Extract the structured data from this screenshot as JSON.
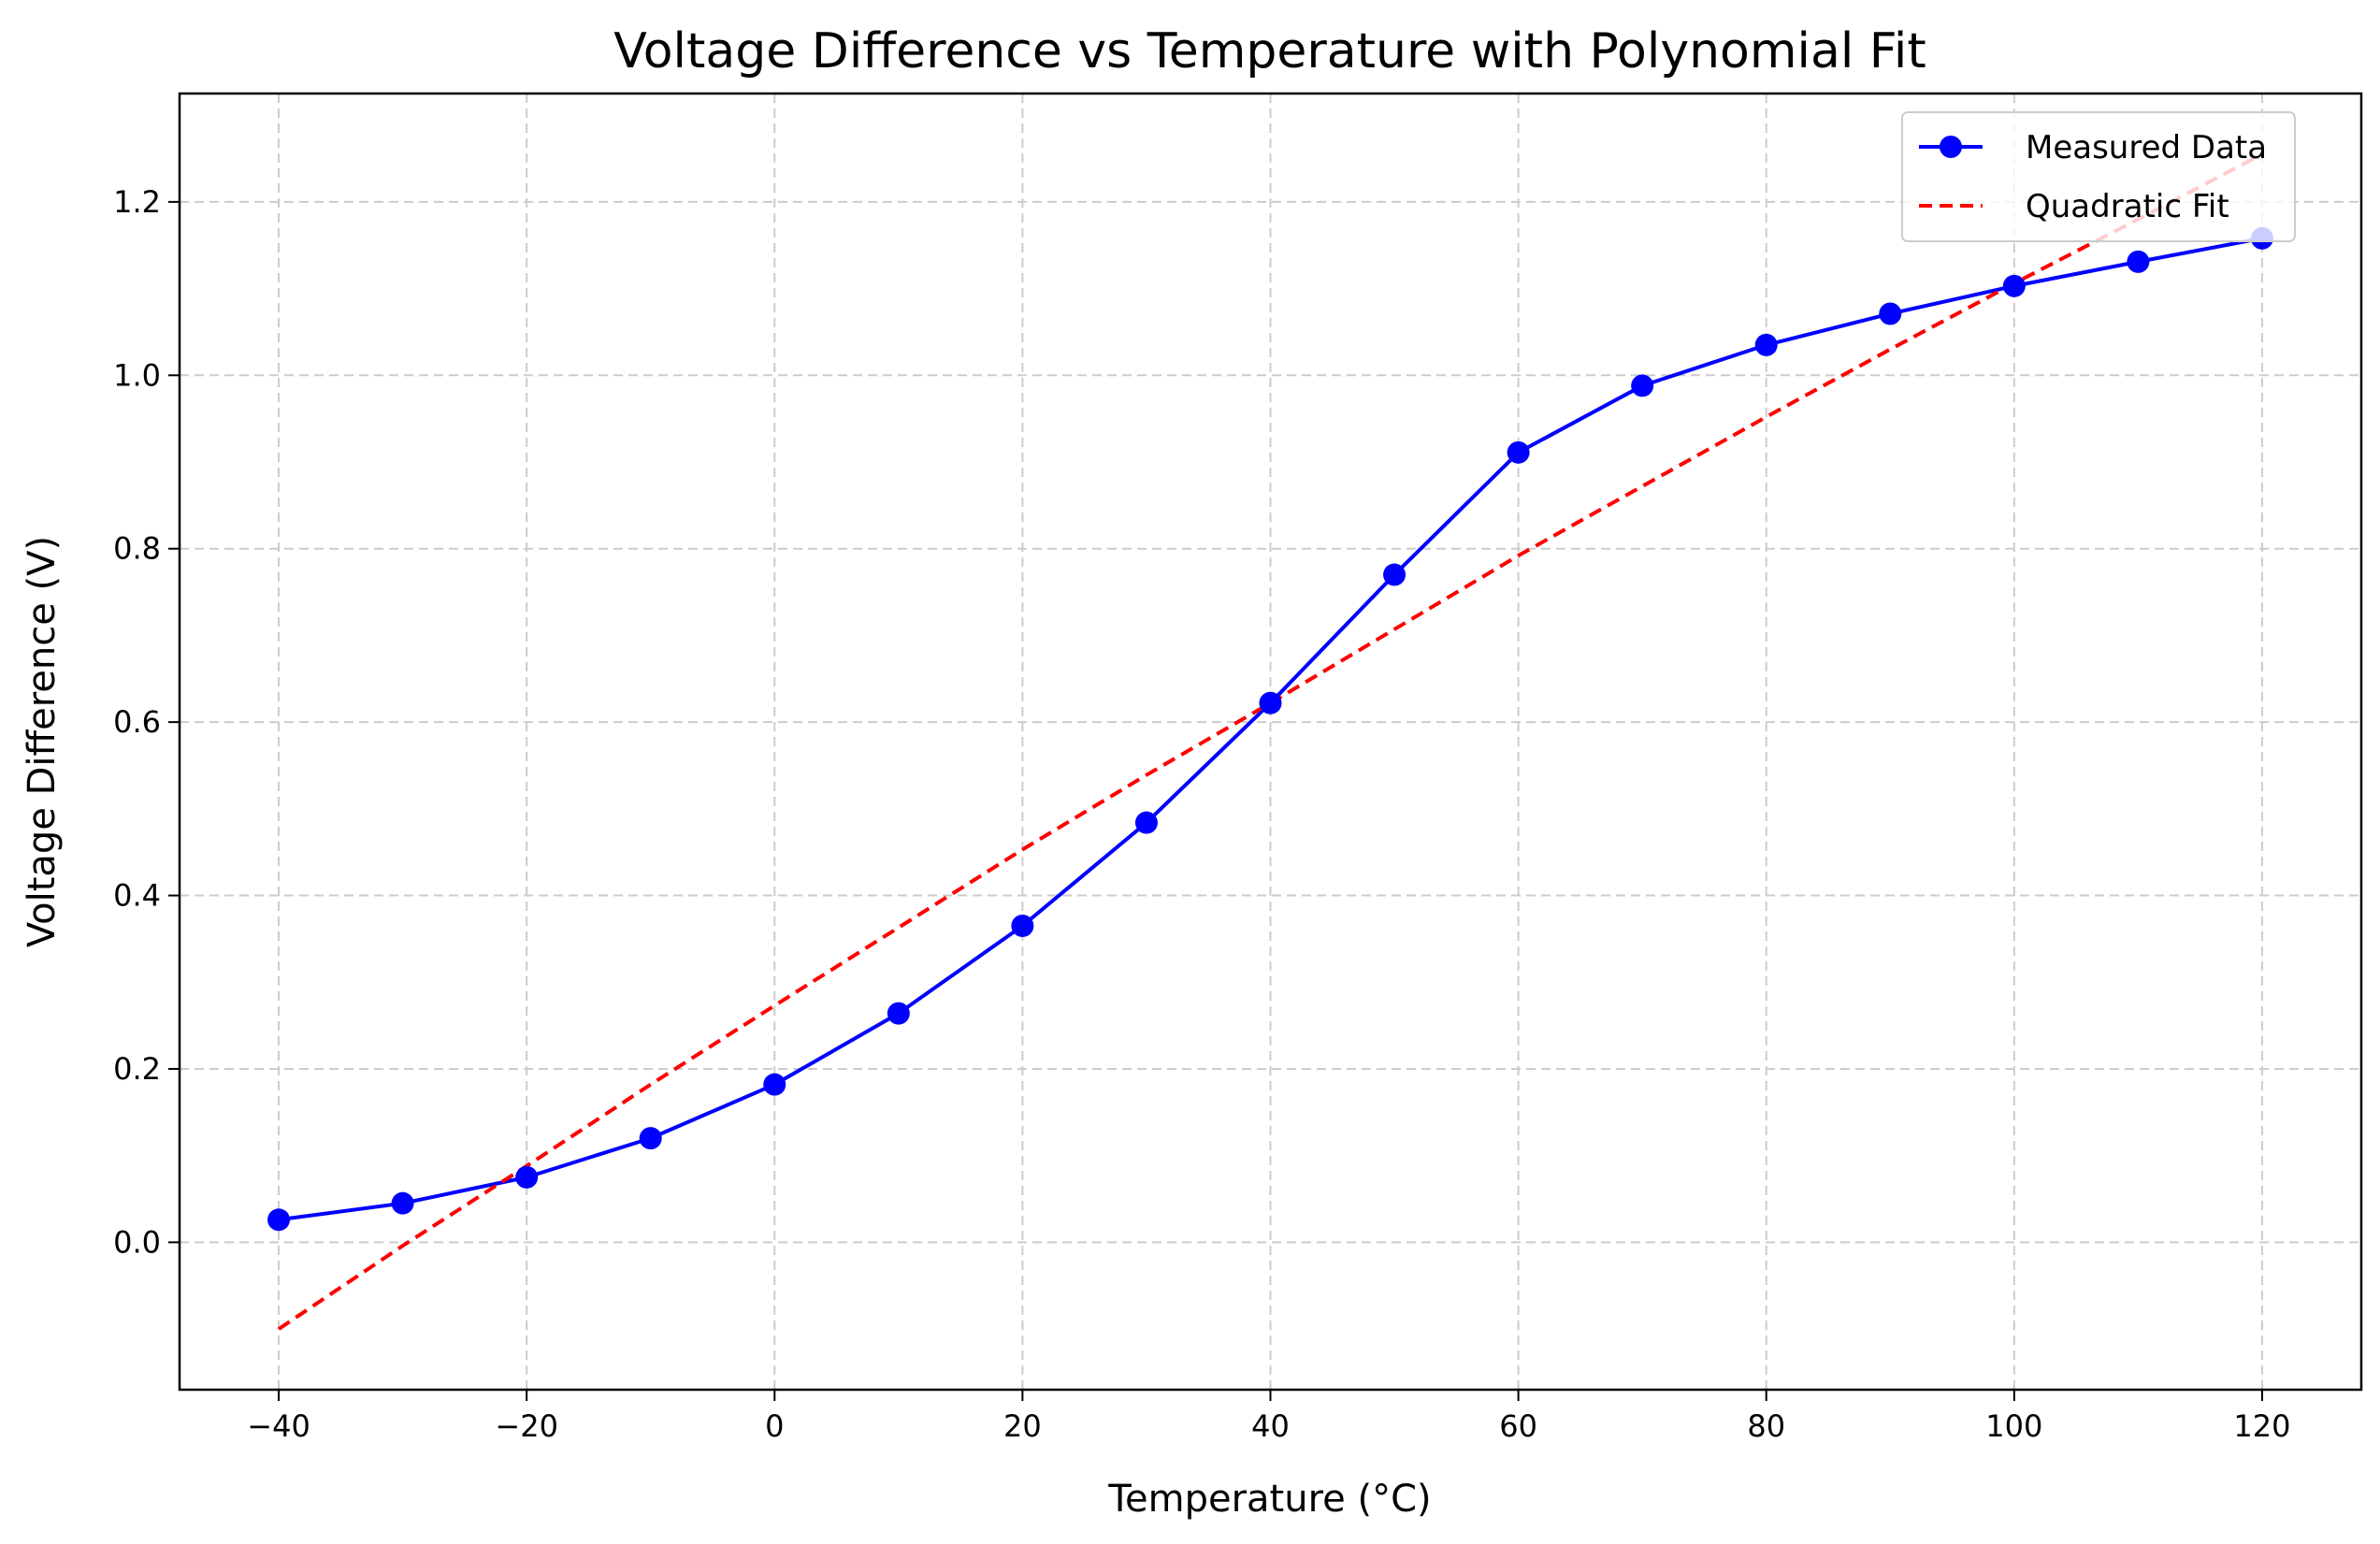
{
  "chart_data": {
    "type": "line",
    "title": "Voltage Difference vs Temperature with Polynomial Fit",
    "xlabel": "Temperature (°C)",
    "ylabel": "Voltage Difference (V)",
    "xlim": [
      -48,
      128
    ],
    "ylim": [
      -0.17,
      1.325
    ],
    "xticks": [
      -40,
      -20,
      0,
      20,
      40,
      60,
      80,
      100,
      120
    ],
    "xtick_labels": [
      "−40",
      "−20",
      "0",
      "20",
      "40",
      "60",
      "80",
      "100",
      "120"
    ],
    "yticks": [
      0.0,
      0.2,
      0.4,
      0.6,
      0.8,
      1.0,
      1.2
    ],
    "ytick_labels": [
      "0.0",
      "0.2",
      "0.4",
      "0.6",
      "0.8",
      "1.0",
      "1.2"
    ],
    "grid": true,
    "legend_position": "top-right",
    "series": [
      {
        "name": "Measured Data",
        "style": "solid line with circle markers",
        "color": "#0000ff",
        "x": [
          -40,
          -30,
          -20,
          -10,
          0,
          10,
          20,
          30,
          40,
          50,
          60,
          70,
          80,
          90,
          100,
          110,
          120
        ],
        "y": [
          0.026,
          0.045,
          0.075,
          0.12,
          0.182,
          0.264,
          0.365,
          0.484,
          0.622,
          0.77,
          0.911,
          0.988,
          1.035,
          1.071,
          1.103,
          1.131,
          1.158
        ]
      },
      {
        "name": "Quadratic Fit",
        "style": "dashed line",
        "color": "#ff0000",
        "x": [
          -40,
          -30,
          -20,
          -10,
          0,
          10,
          20,
          30,
          40,
          50,
          60,
          70,
          80,
          90,
          100,
          110,
          120
        ],
        "y": [
          -0.1,
          -0.004,
          0.088,
          0.182,
          0.273,
          0.363,
          0.453,
          0.539,
          0.622,
          0.707,
          0.792,
          0.872,
          0.952,
          1.03,
          1.106,
          1.18,
          1.255
        ]
      }
    ]
  }
}
